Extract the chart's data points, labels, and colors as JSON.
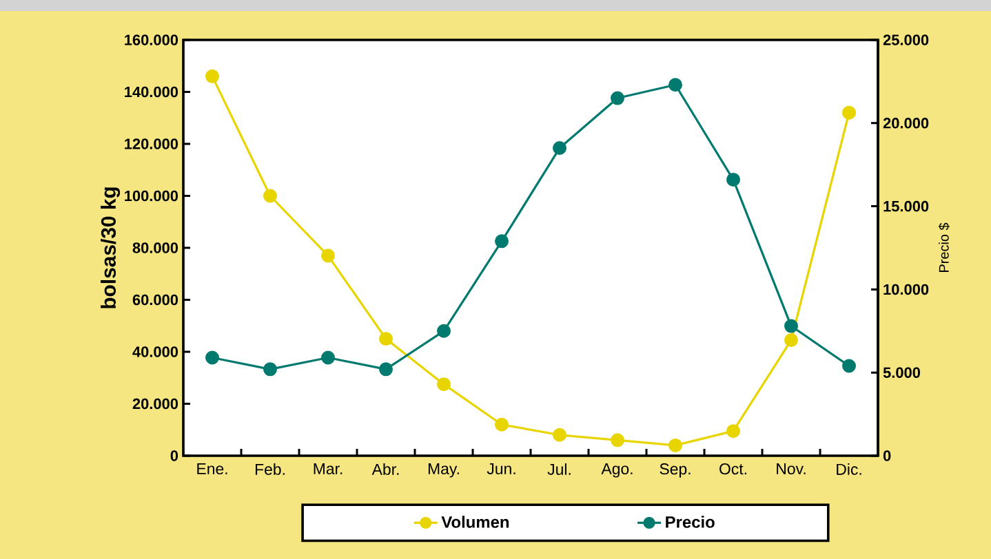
{
  "chart_data": {
    "type": "line",
    "ylabel": "bolsas/30 kg",
    "y2label": "Precio $",
    "categories": [
      "Ene.",
      "Feb.",
      "Mar.",
      "Abr.",
      "May.",
      "Jun.",
      "Jul.",
      "Ago.",
      "Sep.",
      "Oct.",
      "Nov.",
      "Dic."
    ],
    "series": [
      {
        "name": "Volumen",
        "color": "#e8d500",
        "values": [
          146000,
          100000,
          77000,
          45000,
          27500,
          12000,
          8000,
          6000,
          4000,
          9500,
          44500,
          132000
        ]
      },
      {
        "name": "Precio",
        "color": "#007a6e",
        "axis": "y2",
        "values": [
          5900,
          5200,
          5900,
          5200,
          7500,
          12900,
          18500,
          21500,
          22300,
          16600,
          7800,
          5400
        ]
      }
    ],
    "ylim": [
      0,
      160000
    ],
    "yticks": [
      {
        "value": 0,
        "label": "0"
      },
      {
        "value": 20000,
        "label": "20.000"
      },
      {
        "value": 40000,
        "label": "40.000"
      },
      {
        "value": 60000,
        "label": "60.000"
      },
      {
        "value": 80000,
        "label": "80.000"
      },
      {
        "value": 100000,
        "label": "100.000"
      },
      {
        "value": 120000,
        "label": "120.000"
      },
      {
        "value": 140000,
        "label": "140.000"
      },
      {
        "value": 160000,
        "label": "160.000"
      }
    ],
    "y2lim": [
      0,
      25000
    ],
    "y2ticks": [
      {
        "value": 0,
        "label": "0"
      },
      {
        "value": 5000,
        "label": "5.000"
      },
      {
        "value": 10000,
        "label": "10.000"
      },
      {
        "value": 15000,
        "label": "15.000"
      },
      {
        "value": 20000,
        "label": "20.000"
      },
      {
        "value": 25000,
        "label": "25.000"
      }
    ],
    "legend": "bottom",
    "marker": "circle",
    "line_style": "solid",
    "grid": false
  }
}
